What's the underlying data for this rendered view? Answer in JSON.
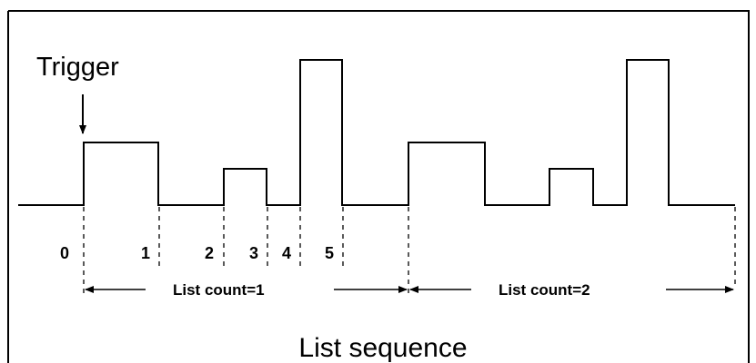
{
  "diagram": {
    "trigger_label": "Trigger",
    "step_labels": [
      "0",
      "1",
      "2",
      "3",
      "4",
      "5"
    ],
    "list_counts": [
      "List count=1",
      "List count=2"
    ],
    "title": "List sequence",
    "step_levels": [
      "high",
      "low",
      "mid",
      "low",
      "peak",
      "low"
    ],
    "line_color": "#000000",
    "background": "#ffffff"
  }
}
